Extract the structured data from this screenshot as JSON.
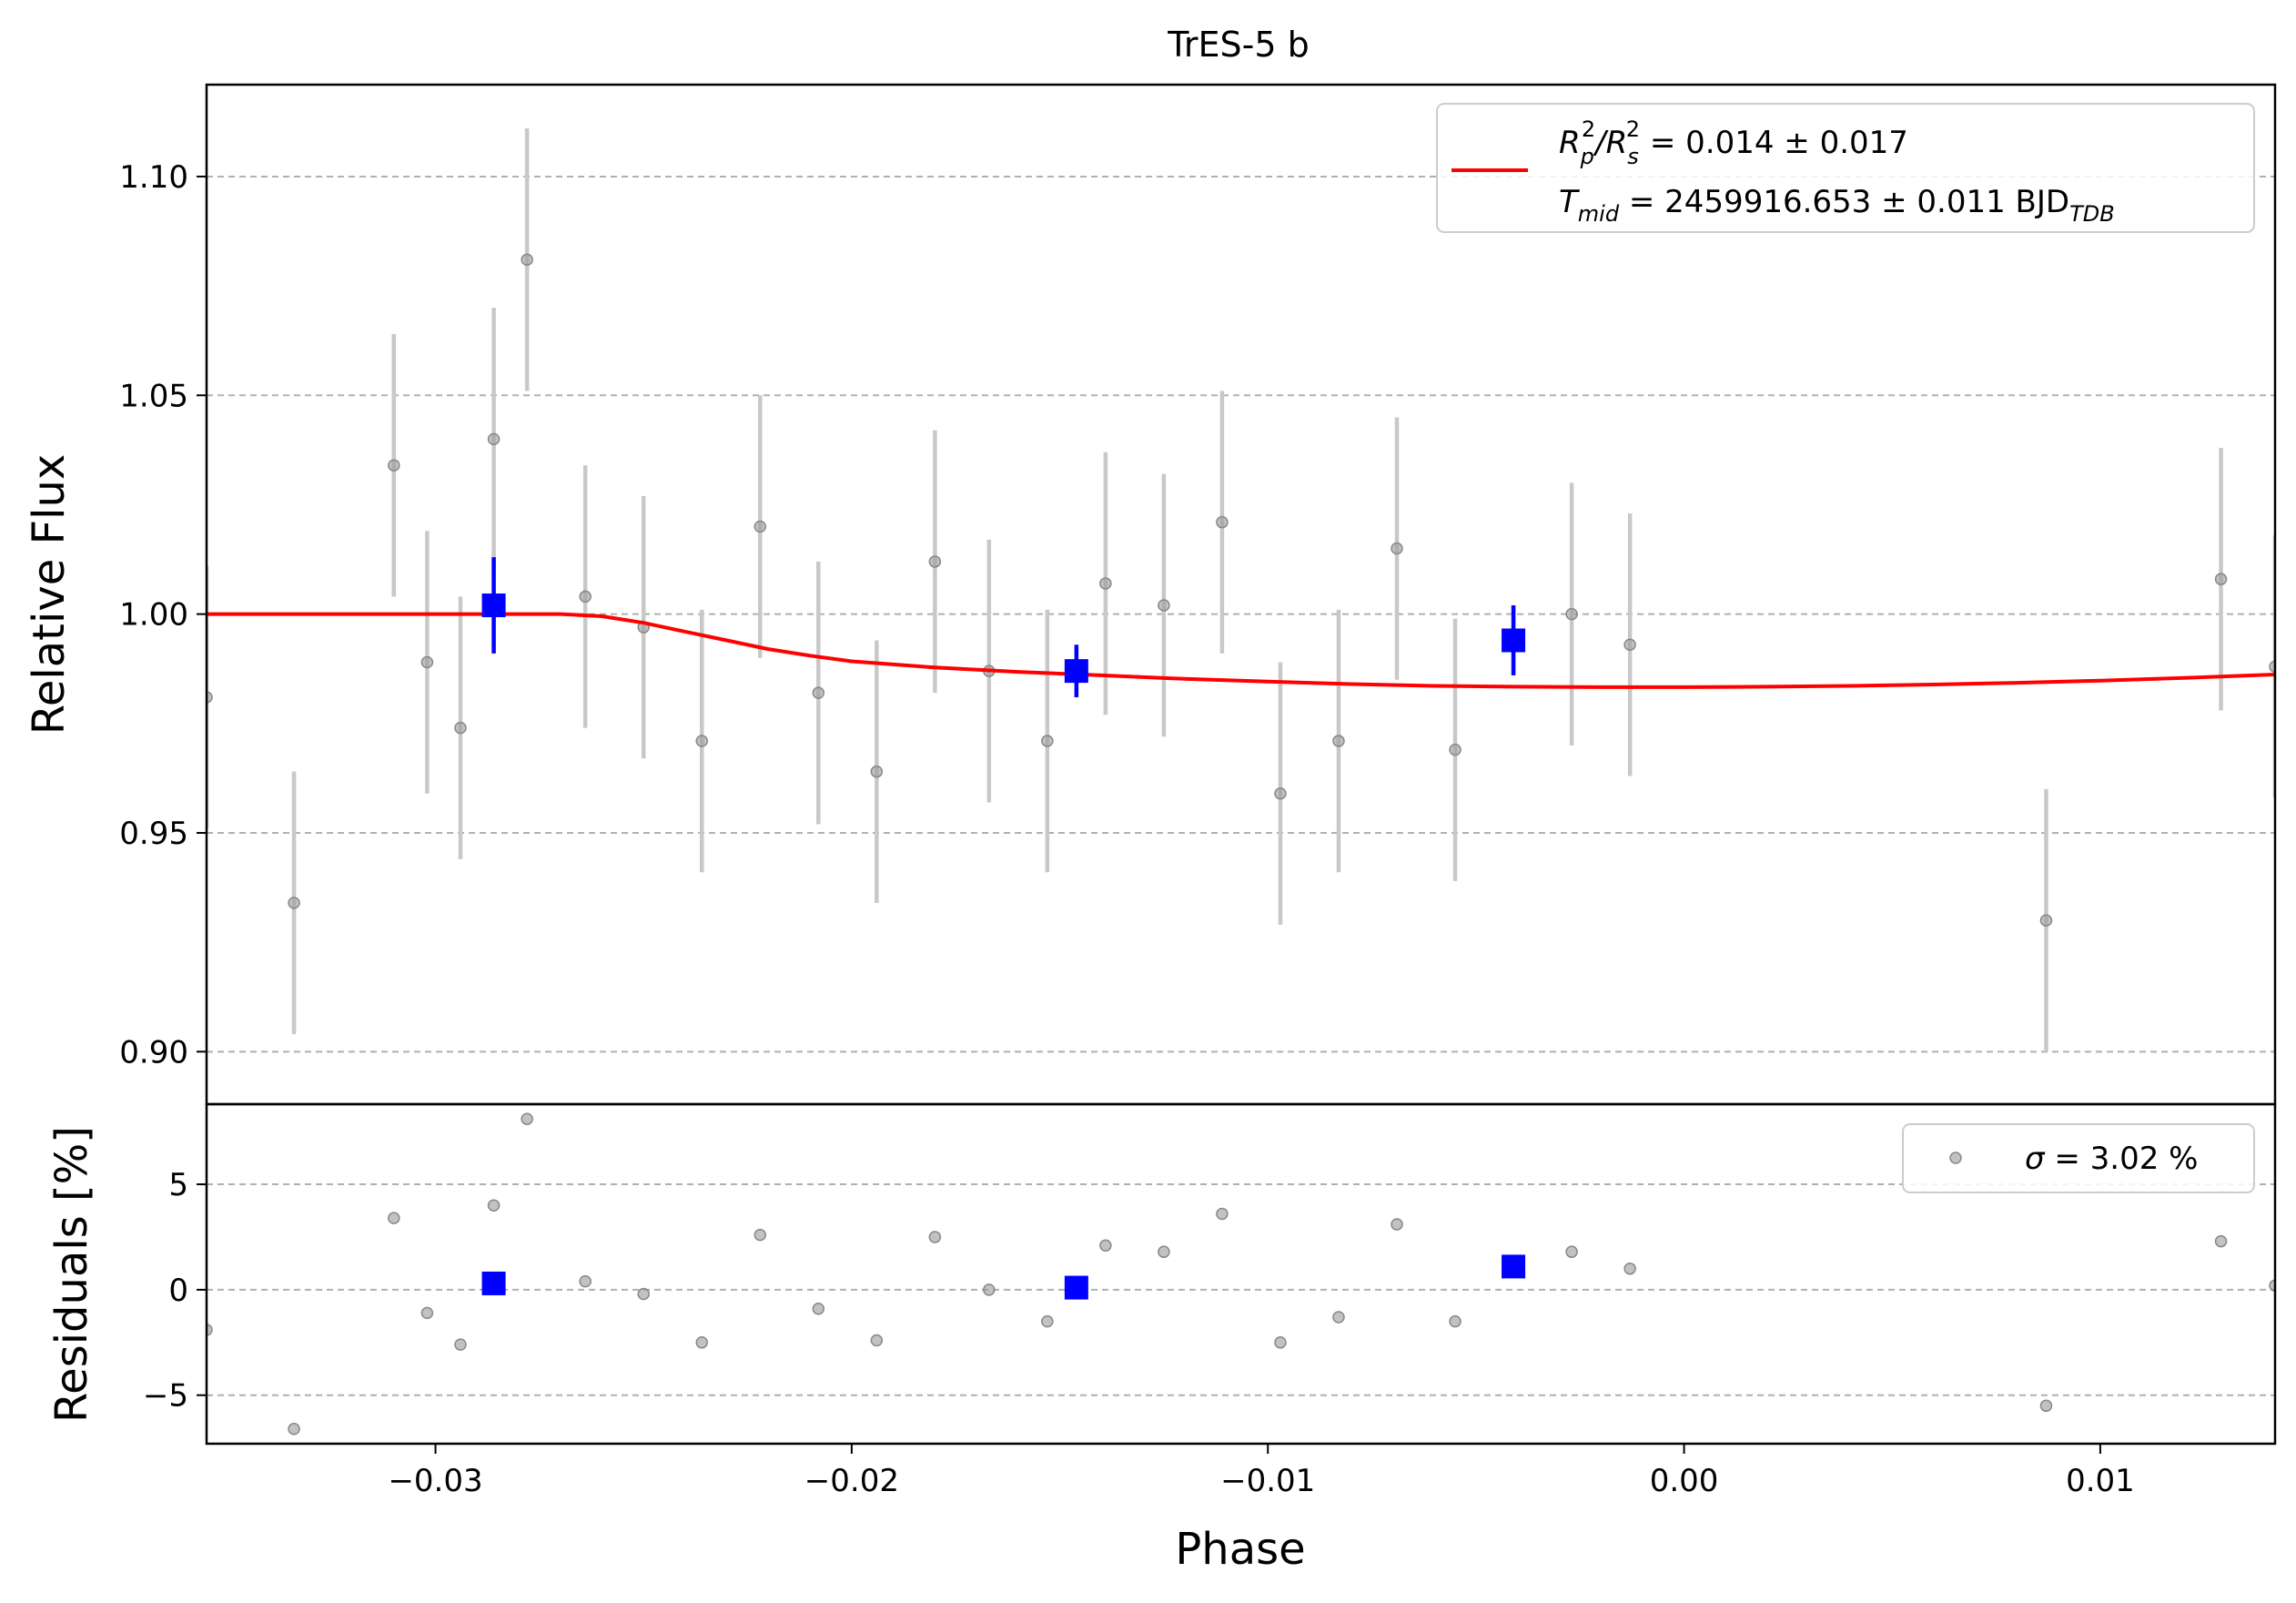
{
  "chart_data": {
    "type": "scatter",
    "title": "TrES-5 b",
    "xlabel": "Phase",
    "xlim": [
      -0.0355,
      0.0142
    ],
    "x_ticks": [
      {
        "value": -0.03,
        "label": "−0.03"
      },
      {
        "value": -0.02,
        "label": "−0.02"
      },
      {
        "value": -0.01,
        "label": "−0.01"
      },
      {
        "value": 0.0,
        "label": "0.00"
      },
      {
        "value": 0.01,
        "label": "0.01"
      }
    ],
    "grid": true,
    "top_panel": {
      "ylabel": "Relative Flux",
      "ylim": [
        0.888,
        1.121
      ],
      "y_ticks": [
        {
          "value": 0.9,
          "label": "0.90"
        },
        {
          "value": 0.95,
          "label": "0.95"
        },
        {
          "value": 1.0,
          "label": "1.00"
        },
        {
          "value": 1.05,
          "label": "1.05"
        },
        {
          "value": 1.1,
          "label": "1.10"
        }
      ],
      "legend": {
        "placement": "top-right",
        "line1": {
          "prefix": "R",
          "sub1": "p",
          "sup1": "2",
          "slash": "/R",
          "sub2": "s",
          "sup2": "2",
          "text": " = 0.014 ± 0.017"
        },
        "line2": {
          "prefix": "T",
          "sub1": "mid",
          "text": " = 2459916.653 ± 0.011 BJD",
          "sub2": "TDB"
        }
      },
      "data_points": [
        {
          "x": -0.0355,
          "y": 0.981,
          "err": 0.03
        },
        {
          "x": -0.0334,
          "y": 0.934,
          "err": 0.03
        },
        {
          "x": -0.031,
          "y": 1.034,
          "err": 0.03
        },
        {
          "x": -0.0302,
          "y": 0.989,
          "err": 0.03
        },
        {
          "x": -0.0294,
          "y": 0.974,
          "err": 0.03
        },
        {
          "x": -0.0286,
          "y": 1.04,
          "err": 0.03
        },
        {
          "x": -0.0278,
          "y": 1.081,
          "err": 0.03
        },
        {
          "x": -0.0264,
          "y": 1.004,
          "err": 0.03
        },
        {
          "x": -0.025,
          "y": 0.997,
          "err": 0.03
        },
        {
          "x": -0.0236,
          "y": 0.971,
          "err": 0.03
        },
        {
          "x": -0.0222,
          "y": 1.02,
          "err": 0.03
        },
        {
          "x": -0.0208,
          "y": 0.982,
          "err": 0.03
        },
        {
          "x": -0.0194,
          "y": 0.964,
          "err": 0.03
        },
        {
          "x": -0.018,
          "y": 1.012,
          "err": 0.03
        },
        {
          "x": -0.0167,
          "y": 0.987,
          "err": 0.03
        },
        {
          "x": -0.0153,
          "y": 0.971,
          "err": 0.03
        },
        {
          "x": -0.0139,
          "y": 1.007,
          "err": 0.03
        },
        {
          "x": -0.0125,
          "y": 1.002,
          "err": 0.03
        },
        {
          "x": -0.0111,
          "y": 1.021,
          "err": 0.03
        },
        {
          "x": -0.0097,
          "y": 0.959,
          "err": 0.03
        },
        {
          "x": -0.0083,
          "y": 0.971,
          "err": 0.03
        },
        {
          "x": -0.0069,
          "y": 1.015,
          "err": 0.03
        },
        {
          "x": -0.0055,
          "y": 0.969,
          "err": 0.03
        },
        {
          "x": -0.0041,
          "y": 0.994,
          "err": 0.008
        },
        {
          "x": -0.0027,
          "y": 1.0,
          "err": 0.03
        },
        {
          "x": -0.0013,
          "y": 0.993,
          "err": 0.03
        },
        {
          "x": 0.0087,
          "y": 0.93,
          "err": 0.03
        },
        {
          "x": 0.0129,
          "y": 1.008,
          "err": 0.03
        },
        {
          "x": 0.0142,
          "y": 0.988,
          "err": 0.03
        }
      ],
      "binned_points": [
        {
          "x": -0.0286,
          "y": 1.002,
          "err": 0.011
        },
        {
          "x": -0.0146,
          "y": 0.987,
          "err": 0.006
        },
        {
          "x": -0.0041,
          "y": 0.994,
          "err": 0.008
        }
      ],
      "model": [
        [
          -0.0355,
          1.0
        ],
        [
          -0.028,
          1.0
        ],
        [
          -0.027,
          1.0
        ],
        [
          -0.026,
          0.9995
        ],
        [
          -0.025,
          0.998
        ],
        [
          -0.024,
          0.996
        ],
        [
          -0.023,
          0.994
        ],
        [
          -0.022,
          0.992
        ],
        [
          -0.021,
          0.9905
        ],
        [
          -0.02,
          0.9892
        ],
        [
          -0.018,
          0.9878
        ],
        [
          -0.016,
          0.9868
        ],
        [
          -0.014,
          0.986
        ],
        [
          -0.012,
          0.9852
        ],
        [
          -0.01,
          0.9846
        ],
        [
          -0.008,
          0.984
        ],
        [
          -0.006,
          0.9836
        ],
        [
          -0.004,
          0.9834
        ],
        [
          -0.002,
          0.9833
        ],
        [
          0.0,
          0.9833
        ],
        [
          0.002,
          0.9834
        ],
        [
          0.004,
          0.9836
        ],
        [
          0.006,
          0.9839
        ],
        [
          0.008,
          0.9843
        ],
        [
          0.01,
          0.9848
        ],
        [
          0.012,
          0.9854
        ],
        [
          0.0142,
          0.9862
        ]
      ]
    },
    "bottom_panel": {
      "ylabel": "Residuals [%]",
      "ylim": [
        -7.3,
        8.8
      ],
      "y_ticks": [
        {
          "value": -5,
          "label": "−5"
        },
        {
          "value": 0,
          "label": "0"
        },
        {
          "value": 5,
          "label": "5"
        }
      ],
      "legend": {
        "placement": "top-right",
        "sigma_symbol": "σ",
        "text": " = 3.02 %"
      },
      "data_points": [
        {
          "x": -0.0355,
          "y": -1.9
        },
        {
          "x": -0.0334,
          "y": -6.6
        },
        {
          "x": -0.031,
          "y": 3.4
        },
        {
          "x": -0.0302,
          "y": -1.1
        },
        {
          "x": -0.0294,
          "y": -2.6
        },
        {
          "x": -0.0286,
          "y": 4.0
        },
        {
          "x": -0.0278,
          "y": 8.1
        },
        {
          "x": -0.0264,
          "y": 0.4
        },
        {
          "x": -0.025,
          "y": -0.2
        },
        {
          "x": -0.0236,
          "y": -2.5
        },
        {
          "x": -0.0222,
          "y": 2.6
        },
        {
          "x": -0.0208,
          "y": -0.9
        },
        {
          "x": -0.0194,
          "y": -2.4
        },
        {
          "x": -0.018,
          "y": 2.5
        },
        {
          "x": -0.0167,
          "y": 0.0
        },
        {
          "x": -0.0153,
          "y": -1.5
        },
        {
          "x": -0.0139,
          "y": 2.1
        },
        {
          "x": -0.0125,
          "y": 1.8
        },
        {
          "x": -0.0111,
          "y": 3.6
        },
        {
          "x": -0.0097,
          "y": -2.5
        },
        {
          "x": -0.0083,
          "y": -1.3
        },
        {
          "x": -0.0069,
          "y": 3.1
        },
        {
          "x": -0.0055,
          "y": -1.5
        },
        {
          "x": -0.0027,
          "y": 1.8
        },
        {
          "x": -0.0013,
          "y": 1.0
        },
        {
          "x": 0.0087,
          "y": -5.5
        },
        {
          "x": 0.0129,
          "y": 2.3
        },
        {
          "x": 0.0142,
          "y": 0.2
        }
      ],
      "binned_points": [
        {
          "x": -0.0286,
          "y": 0.3
        },
        {
          "x": -0.0146,
          "y": 0.1
        },
        {
          "x": -0.0041,
          "y": 1.1
        }
      ]
    },
    "colors": {
      "data": "#999999",
      "errorbar": "#c8c8c8",
      "binned": "#0000ff",
      "model": "#ff0000",
      "grid": "#b0b0b0"
    }
  }
}
